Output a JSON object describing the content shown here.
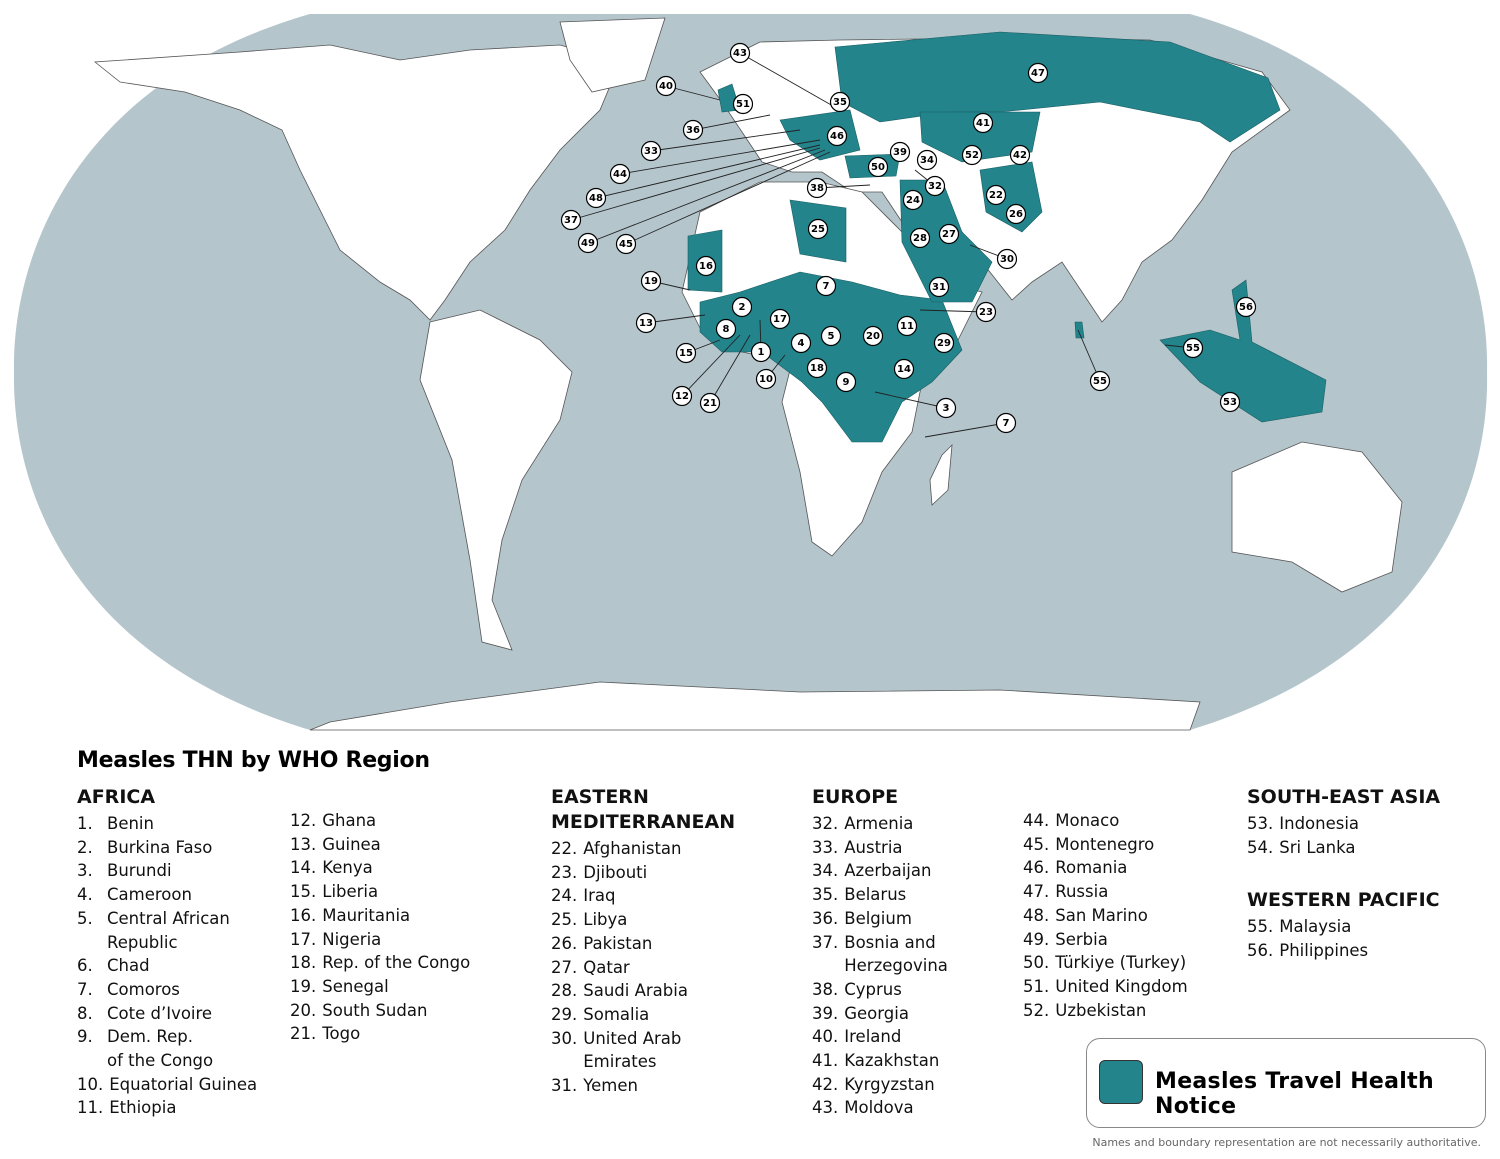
{
  "colors": {
    "ocean": "#b4c5cc",
    "land": "#ffffff",
    "highlight": "#23848b",
    "border": "#555555"
  },
  "legend": {
    "title": "Measles THN by WHO Region",
    "key_label": "Measles Travel Health Notice",
    "note": "Names and boundary representation are not necessarily authoritative."
  },
  "regions": [
    {
      "header": "AFRICA",
      "items": [
        {
          "num": "1.",
          "name": "Benin"
        },
        {
          "num": "2.",
          "name": "Burkina Faso"
        },
        {
          "num": "3.",
          "name": "Burundi"
        },
        {
          "num": "4.",
          "name": "Cameroon"
        },
        {
          "num": "5.",
          "name": "Central African\nRepublic"
        },
        {
          "num": "6.",
          "name": "Chad"
        },
        {
          "num": "7.",
          "name": "Comoros"
        },
        {
          "num": "8.",
          "name": "Cote d’Ivoire"
        },
        {
          "num": "9.",
          "name": "Dem. Rep.\nof the Congo"
        },
        {
          "num": "10.",
          "name": "Equatorial Guinea"
        },
        {
          "num": "11.",
          "name": "Ethiopia"
        }
      ]
    },
    {
      "header": "",
      "items": [
        {
          "num": "12.",
          "name": "Ghana"
        },
        {
          "num": "13.",
          "name": "Guinea"
        },
        {
          "num": "14.",
          "name": "Kenya"
        },
        {
          "num": "15.",
          "name": "Liberia"
        },
        {
          "num": "16.",
          "name": "Mauritania"
        },
        {
          "num": "17.",
          "name": "Nigeria"
        },
        {
          "num": "18.",
          "name": "Rep. of the Congo"
        },
        {
          "num": "19.",
          "name": "Senegal"
        },
        {
          "num": "20.",
          "name": "South Sudan"
        },
        {
          "num": "21.",
          "name": "Togo"
        }
      ]
    },
    {
      "header": "EASTERN\nMEDITERRANEAN",
      "items": [
        {
          "num": "22.",
          "name": "Afghanistan"
        },
        {
          "num": "23.",
          "name": "Djibouti"
        },
        {
          "num": "24.",
          "name": "Iraq"
        },
        {
          "num": "25.",
          "name": "Libya"
        },
        {
          "num": "26.",
          "name": "Pakistan"
        },
        {
          "num": "27.",
          "name": "Qatar"
        },
        {
          "num": "28.",
          "name": "Saudi Arabia"
        },
        {
          "num": "29.",
          "name": "Somalia"
        },
        {
          "num": "30.",
          "name": "United Arab\nEmirates"
        },
        {
          "num": "31.",
          "name": "Yemen"
        }
      ]
    },
    {
      "header": "EUROPE",
      "items": [
        {
          "num": "32.",
          "name": "Armenia"
        },
        {
          "num": "33.",
          "name": "Austria"
        },
        {
          "num": "34.",
          "name": "Azerbaijan"
        },
        {
          "num": "35.",
          "name": "Belarus"
        },
        {
          "num": "36.",
          "name": "Belgium"
        },
        {
          "num": "37.",
          "name": "Bosnia and\nHerzegovina"
        },
        {
          "num": "38.",
          "name": "Cyprus"
        },
        {
          "num": "39.",
          "name": "Georgia"
        },
        {
          "num": "40.",
          "name": "Ireland"
        },
        {
          "num": "41.",
          "name": "Kazakhstan"
        },
        {
          "num": "42.",
          "name": "Kyrgyzstan"
        },
        {
          "num": "43.",
          "name": "Moldova"
        }
      ]
    },
    {
      "header": "",
      "items": [
        {
          "num": "44.",
          "name": "Monaco"
        },
        {
          "num": "45.",
          "name": "Montenegro"
        },
        {
          "num": "46.",
          "name": "Romania"
        },
        {
          "num": "47.",
          "name": "Russia"
        },
        {
          "num": "48.",
          "name": "San Marino"
        },
        {
          "num": "49.",
          "name": "Serbia"
        },
        {
          "num": "50.",
          "name": "Türkiye (Turkey)"
        },
        {
          "num": "51.",
          "name": "United Kingdom"
        },
        {
          "num": "52.",
          "name": "Uzbekistan"
        }
      ]
    },
    {
      "header": "SOUTH-EAST ASIA",
      "items": [
        {
          "num": "53.",
          "name": "Indonesia"
        },
        {
          "num": "54.",
          "name": "Sri Lanka"
        }
      ]
    },
    {
      "header": "WESTERN PACIFIC",
      "items": [
        {
          "num": "55.",
          "name": "Malaysia"
        },
        {
          "num": "56.",
          "name": "Philippines"
        }
      ]
    }
  ],
  "map_markers": [
    "43",
    "40",
    "51",
    "35",
    "36",
    "46",
    "33",
    "39",
    "34",
    "52",
    "42",
    "41",
    "47",
    "50",
    "32",
    "44",
    "48",
    "38",
    "37",
    "49",
    "45",
    "24",
    "22",
    "26",
    "25",
    "28",
    "27",
    "30",
    "16",
    "19",
    "7",
    "31",
    "23",
    "2",
    "13",
    "17",
    "11",
    "8",
    "5",
    "20",
    "29",
    "15",
    "1",
    "4",
    "18",
    "14",
    "10",
    "9",
    "3",
    "12",
    "21",
    "7",
    "55",
    "55",
    "53",
    "56"
  ]
}
